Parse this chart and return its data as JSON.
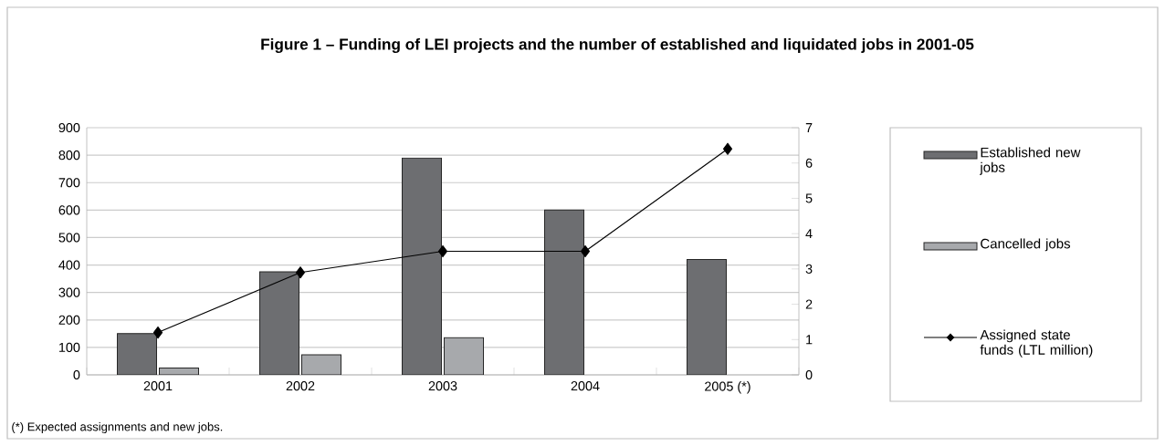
{
  "chart_data": {
    "type": "bar",
    "title": "Figure 1 – Funding of LEI projects and the number of established and liquidated jobs in 2001-05",
    "categories": [
      "2001",
      "2002",
      "2003",
      "2004",
      "2005 (*)"
    ],
    "series": [
      {
        "name": "Established new jobs",
        "color": "#6d6e71",
        "values": [
          150,
          375,
          790,
          600,
          420
        ]
      },
      {
        "name": "Cancelled jobs",
        "color": "#a7a9ac",
        "values": [
          25,
          73,
          135,
          null,
          null
        ]
      },
      {
        "name": "Assigned state funds (LTL million)",
        "type": "line",
        "axis": "y2",
        "color": "#000000",
        "marker": "diamond",
        "line_style": "solid",
        "values": [
          1.2,
          2.9,
          3.5,
          3.5,
          6.4
        ]
      }
    ],
    "ylim": [
      0,
      900
    ],
    "yticks": [
      0,
      100,
      200,
      300,
      400,
      500,
      600,
      700,
      800,
      900
    ],
    "y2lim": [
      0,
      7
    ],
    "y2ticks": [
      0,
      1,
      2,
      3,
      4,
      5,
      6,
      7
    ],
    "grid": "y",
    "legend": "right",
    "annotations": [
      "(*) Expected assignments and new jobs."
    ]
  }
}
